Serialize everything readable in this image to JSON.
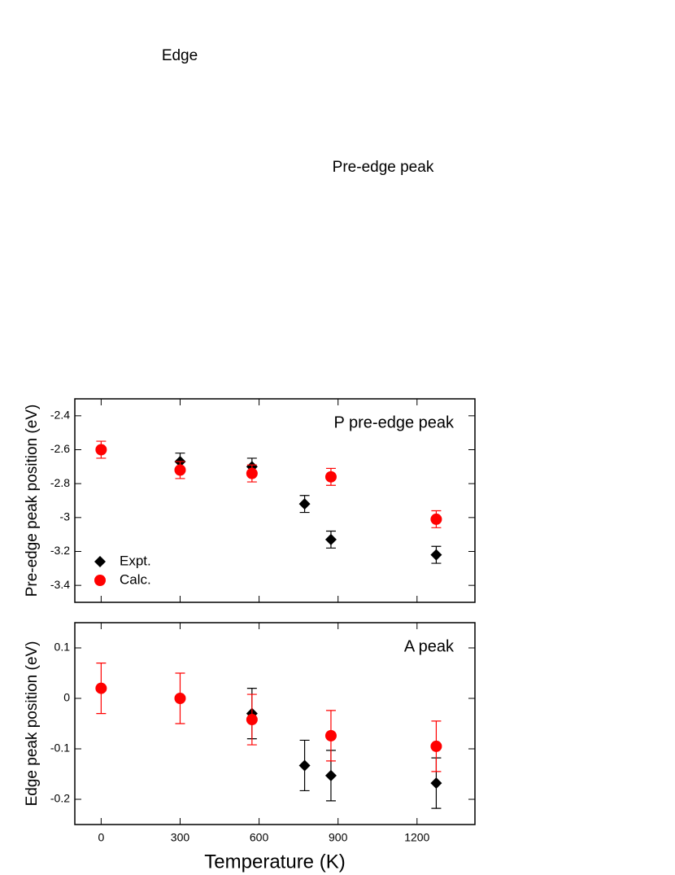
{
  "floating_labels": [
    "Edge",
    "Pre-edge peak"
  ],
  "chart_data": [
    {
      "type": "scatter",
      "annotation": "P pre-edge peak",
      "y_label": "Pre-edge peak position (eV)",
      "xlim": [
        -100,
        1420
      ],
      "xticks": [
        0,
        300,
        600,
        900,
        1200
      ],
      "show_xtick_labels": false,
      "ylim": [
        -3.5,
        -2.3
      ],
      "yticks": [
        -3.4,
        -3.2,
        -3,
        -2.8,
        -2.6,
        -2.4
      ],
      "legend": "lower left",
      "series": [
        {
          "name": "Expt.",
          "color": "#000000",
          "marker": "diamond",
          "x": [
            300,
            573,
            773,
            873,
            1273
          ],
          "values": [
            -2.67,
            -2.7,
            -2.92,
            -3.13,
            -3.22
          ],
          "errors": [
            0.05,
            0.05,
            0.05,
            0.05,
            0.05
          ]
        },
        {
          "name": "Calc.",
          "color": "#ff0000",
          "marker": "circle",
          "x": [
            0,
            300,
            573,
            873,
            1273
          ],
          "values": [
            -2.6,
            -2.72,
            -2.74,
            -2.76,
            -3.01
          ],
          "errors": [
            0.05,
            0.05,
            0.05,
            0.05,
            0.05
          ]
        }
      ]
    },
    {
      "type": "scatter",
      "annotation": "A peak",
      "y_label": "Edge peak position (eV)",
      "x_label": "Temperature (K)",
      "xlim": [
        -100,
        1420
      ],
      "xticks": [
        0,
        300,
        600,
        900,
        1200
      ],
      "show_xtick_labels": true,
      "ylim": [
        -0.25,
        0.15
      ],
      "yticks": [
        -0.2,
        -0.1,
        0,
        0.1
      ],
      "series": [
        {
          "color": "#000000",
          "marker": "diamond",
          "x": [
            573,
            773,
            873,
            1273
          ],
          "values": [
            -0.03,
            -0.133,
            -0.153,
            -0.168
          ],
          "errors": [
            0.05,
            0.05,
            0.05,
            0.05
          ]
        },
        {
          "color": "#ff0000",
          "marker": "circle",
          "x": [
            0,
            300,
            573,
            873,
            1273
          ],
          "values": [
            0.02,
            0,
            -0.042,
            -0.074,
            -0.095
          ],
          "errors": [
            0.05,
            0.05,
            0.05,
            0.05,
            0.05
          ]
        }
      ]
    }
  ]
}
